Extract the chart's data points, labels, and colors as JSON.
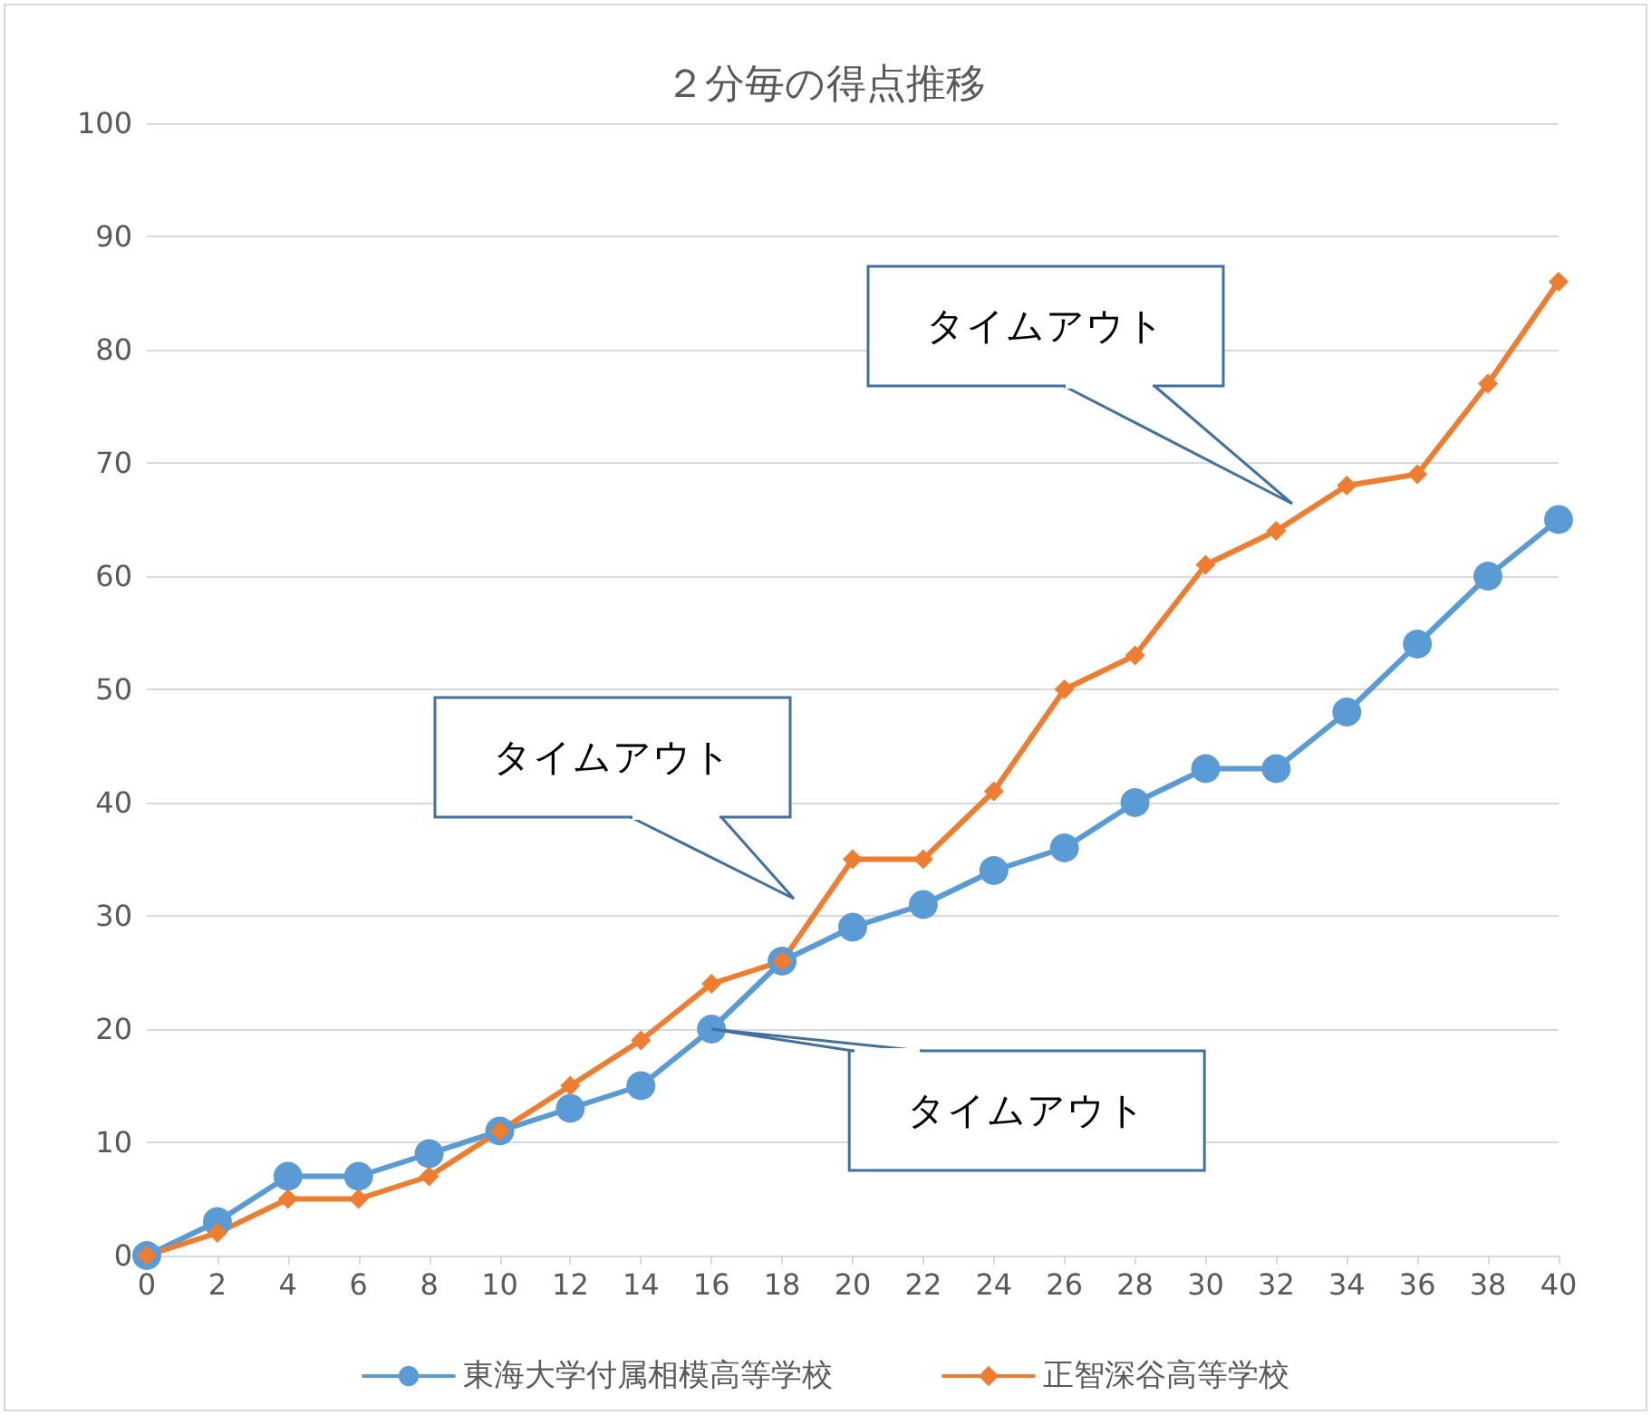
{
  "chart_data": {
    "type": "line",
    "title": "２分毎の得点推移",
    "x": [
      0,
      2,
      4,
      6,
      8,
      10,
      12,
      14,
      16,
      18,
      20,
      22,
      24,
      26,
      28,
      30,
      32,
      34,
      36,
      38,
      40
    ],
    "series": [
      {
        "name": "東海大学付属相模高等学校",
        "color": "#5b9bd5",
        "marker": "circle",
        "values": [
          0,
          3,
          7,
          7,
          9,
          11,
          13,
          15,
          20,
          26,
          29,
          31,
          34,
          36,
          40,
          43,
          43,
          48,
          54,
          60,
          65
        ]
      },
      {
        "name": "正智深谷高等学校",
        "color": "#ed7d31",
        "marker": "diamond",
        "values": [
          0,
          2,
          5,
          5,
          7,
          11,
          15,
          19,
          24,
          26,
          35,
          35,
          41,
          50,
          53,
          61,
          64,
          68,
          69,
          77,
          86
        ]
      }
    ],
    "xlim": [
      0,
      40
    ],
    "xticks": [
      0,
      2,
      4,
      6,
      8,
      10,
      12,
      14,
      16,
      18,
      20,
      22,
      24,
      26,
      28,
      30,
      32,
      34,
      36,
      38,
      40
    ],
    "ylim": [
      0,
      100
    ],
    "yticks": [
      0,
      10,
      20,
      30,
      40,
      50,
      60,
      70,
      80,
      90,
      100
    ],
    "grid": "y",
    "legend": "bottom",
    "line_style": "solid",
    "annotations": [
      "タイムアウト",
      "タイムアウト",
      {
        "text": "タイムアウト",
        "x": 16,
        "y": 20
      }
    ]
  }
}
